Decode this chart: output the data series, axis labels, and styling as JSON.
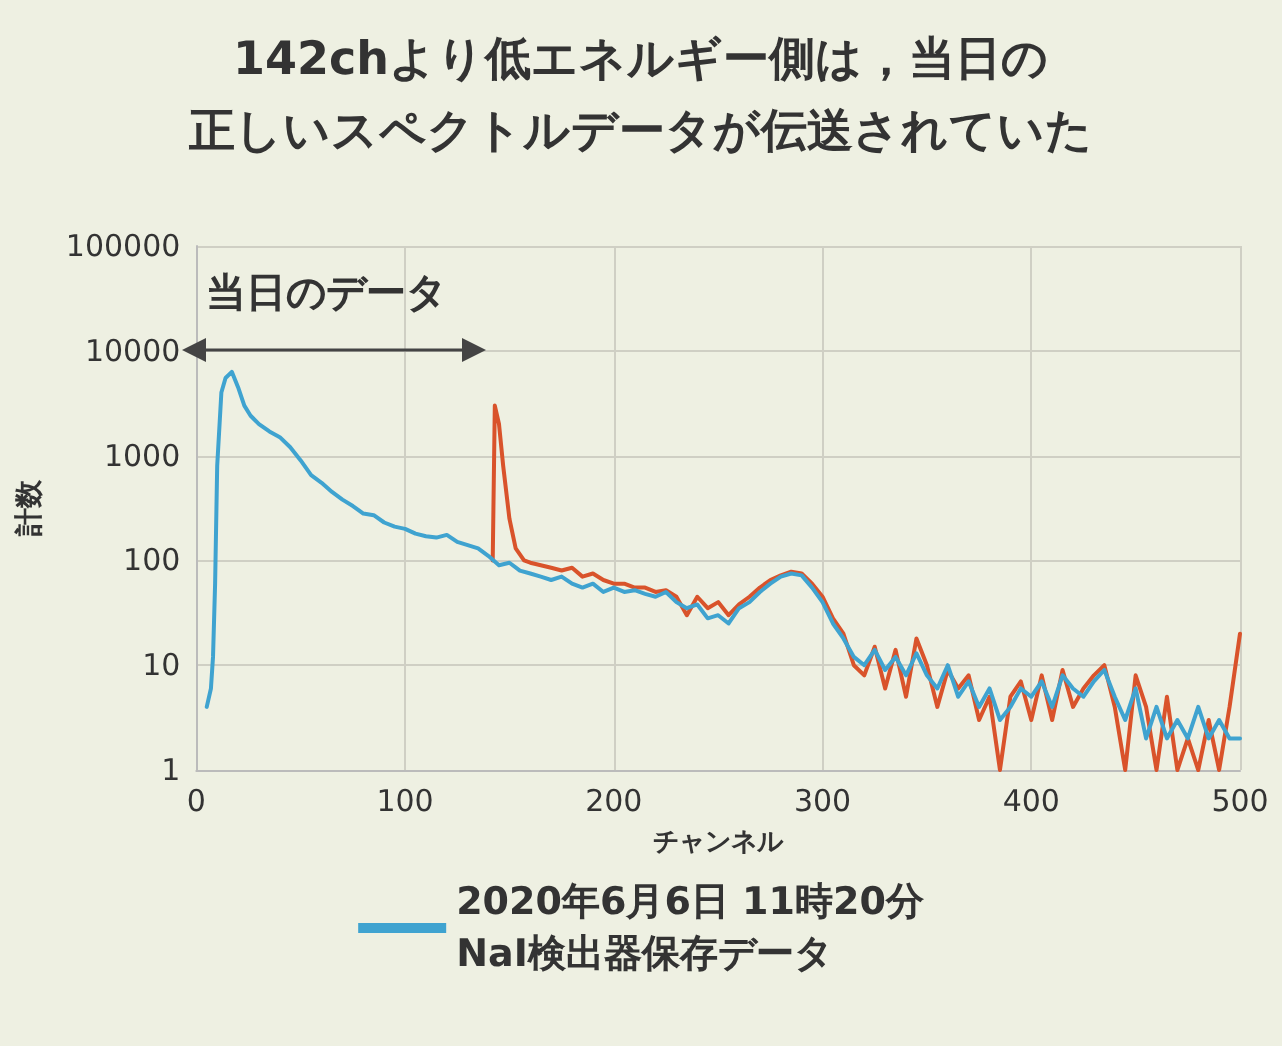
{
  "chart_data": {
    "type": "line",
    "title": "142chより低エネルギー側は，当日の",
    "subtitle": "正しいスペクトルデータが伝送されていた",
    "xlabel": "チャンネル",
    "ylabel": "計数",
    "annotations": [
      "当日のデータ"
    ],
    "log": "y",
    "grid": true,
    "legend": "bottom",
    "marker": "none",
    "line_style": "solid",
    "xlim": [
      0,
      500
    ],
    "xticks": [
      0,
      100,
      200,
      300,
      400,
      500
    ],
    "ylim": [
      1,
      100000
    ],
    "yticks": [
      1,
      10,
      100,
      1000,
      10000,
      100000
    ],
    "series": [
      {
        "color": "#d9532b",
        "x": [
          142,
          143,
          145,
          147,
          150,
          153,
          157,
          160,
          165,
          170,
          175,
          180,
          185,
          190,
          195,
          200,
          205,
          210,
          215,
          220,
          225,
          230,
          235,
          240,
          245,
          250,
          255,
          260,
          265,
          270,
          275,
          280,
          285,
          290,
          295,
          300,
          305,
          310,
          315,
          320,
          325,
          330,
          335,
          340,
          345,
          350,
          355,
          360,
          365,
          370,
          375,
          380,
          385,
          390,
          395,
          400,
          405,
          410,
          415,
          420,
          425,
          430,
          435,
          440,
          445,
          450,
          455,
          460,
          465,
          470,
          475,
          480,
          485,
          490,
          495,
          500
        ],
        "values": [
          100,
          3000,
          2000,
          800,
          250,
          130,
          100,
          95,
          90,
          85,
          80,
          85,
          70,
          75,
          65,
          60,
          60,
          55,
          55,
          50,
          52,
          45,
          30,
          45,
          35,
          40,
          30,
          38,
          45,
          55,
          65,
          72,
          78,
          75,
          60,
          45,
          28,
          20,
          10,
          8,
          15,
          6,
          14,
          5,
          18,
          10,
          4,
          9,
          6,
          8,
          3,
          5,
          1,
          5,
          7,
          3,
          8,
          3,
          9,
          4,
          6,
          8,
          10,
          4,
          1,
          8,
          4,
          1,
          5,
          1,
          2,
          1,
          3,
          1,
          4,
          20
        ]
      },
      {
        "name": "2020年6月6日 11時20分\nNaI検出器保存データ",
        "color": "#3fa3d0",
        "x": [
          5,
          7,
          8,
          9,
          10,
          12,
          14,
          17,
          20,
          23,
          26,
          30,
          35,
          40,
          45,
          50,
          55,
          60,
          65,
          70,
          75,
          80,
          85,
          90,
          95,
          100,
          105,
          110,
          115,
          120,
          125,
          130,
          135,
          140,
          145,
          150,
          155,
          160,
          165,
          170,
          175,
          180,
          185,
          190,
          195,
          200,
          205,
          210,
          215,
          220,
          225,
          230,
          235,
          240,
          245,
          250,
          255,
          260,
          265,
          270,
          275,
          280,
          285,
          290,
          295,
          300,
          305,
          310,
          315,
          320,
          325,
          330,
          335,
          340,
          345,
          350,
          355,
          360,
          365,
          370,
          375,
          380,
          385,
          390,
          395,
          400,
          405,
          410,
          415,
          420,
          425,
          430,
          435,
          440,
          445,
          450,
          455,
          460,
          465,
          470,
          475,
          480,
          485,
          490,
          495,
          500
        ],
        "values": [
          4,
          6,
          12,
          60,
          800,
          4000,
          5500,
          6300,
          4500,
          3000,
          2400,
          2000,
          1700,
          1500,
          1200,
          900,
          650,
          550,
          450,
          380,
          330,
          280,
          270,
          230,
          210,
          200,
          180,
          170,
          165,
          175,
          150,
          140,
          130,
          110,
          90,
          95,
          80,
          75,
          70,
          65,
          70,
          60,
          55,
          60,
          50,
          55,
          50,
          52,
          48,
          45,
          50,
          40,
          35,
          38,
          28,
          30,
          25,
          35,
          40,
          50,
          60,
          70,
          75,
          72,
          55,
          40,
          25,
          18,
          12,
          10,
          14,
          9,
          12,
          8,
          13,
          8,
          6,
          10,
          5,
          7,
          4,
          6,
          3,
          4,
          6,
          5,
          7,
          4,
          8,
          6,
          5,
          7,
          9,
          5,
          3,
          6,
          2,
          4,
          2,
          3,
          2,
          4,
          2,
          3,
          2,
          2
        ]
      }
    ]
  }
}
